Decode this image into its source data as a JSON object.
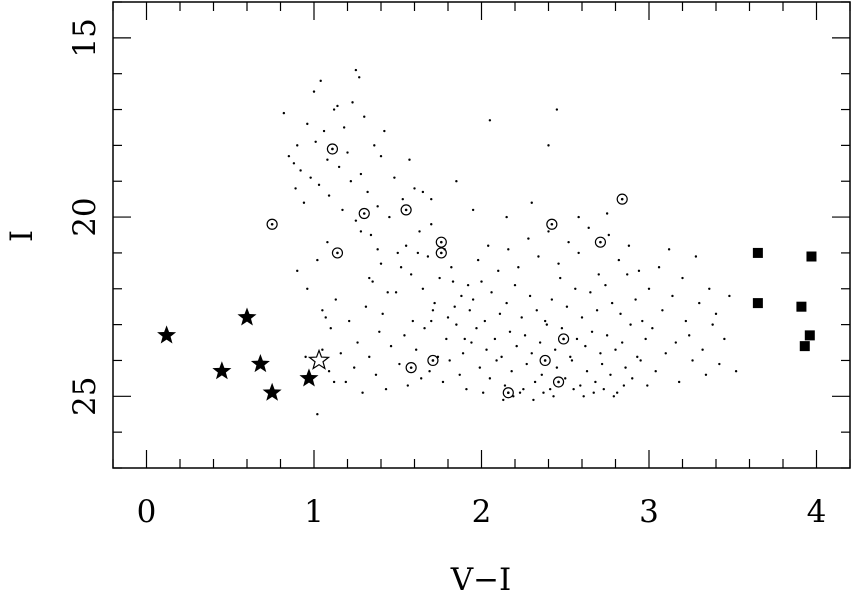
{
  "chart_data": {
    "type": "scatter",
    "title": "",
    "xlabel": "V−I",
    "ylabel": "I",
    "xlim": [
      -0.2,
      4.2
    ],
    "ylim": [
      27.0,
      14.0
    ],
    "y_inverted": true,
    "grid": false,
    "legend": "none",
    "x_ticks": [
      0,
      1,
      2,
      3,
      4
    ],
    "y_ticks": [
      15,
      20,
      25
    ],
    "colors": {
      "marker": "#000000",
      "background": "#ffffff"
    },
    "series": [
      {
        "marker": "filled-star",
        "points": [
          [
            0.12,
            23.3
          ],
          [
            0.45,
            24.3
          ],
          [
            0.6,
            22.8
          ],
          [
            0.68,
            24.1
          ],
          [
            0.75,
            24.9
          ],
          [
            0.97,
            24.5
          ]
        ]
      },
      {
        "marker": "open-star",
        "points": [
          [
            1.03,
            24.0
          ]
        ]
      },
      {
        "marker": "filled-square",
        "points": [
          [
            3.65,
            21.0
          ],
          [
            3.97,
            21.1
          ],
          [
            3.65,
            22.4
          ],
          [
            3.91,
            22.5
          ],
          [
            3.96,
            23.3
          ],
          [
            3.93,
            23.6
          ]
        ]
      },
      {
        "marker": "circled-dot",
        "points": [
          [
            0.75,
            20.2
          ],
          [
            1.11,
            18.1
          ],
          [
            1.3,
            19.9
          ],
          [
            1.14,
            21.0
          ],
          [
            1.55,
            19.8
          ],
          [
            1.76,
            20.7
          ],
          [
            1.76,
            21.0
          ],
          [
            1.58,
            24.2
          ],
          [
            1.71,
            24.0
          ],
          [
            2.16,
            24.9
          ],
          [
            2.42,
            20.2
          ],
          [
            2.38,
            24.0
          ],
          [
            2.46,
            24.6
          ],
          [
            2.49,
            23.4
          ],
          [
            2.71,
            20.7
          ],
          [
            2.84,
            19.5
          ]
        ]
      },
      {
        "marker": "dot",
        "points": [
          [
            0.82,
            17.1
          ],
          [
            0.85,
            18.3
          ],
          [
            0.88,
            18.5
          ],
          [
            0.89,
            19.2
          ],
          [
            0.9,
            18.0
          ],
          [
            0.92,
            18.7
          ],
          [
            0.94,
            19.6
          ],
          [
            0.96,
            17.4
          ],
          [
            0.98,
            18.9
          ],
          [
            1.0,
            16.5
          ],
          [
            1.01,
            17.9
          ],
          [
            1.03,
            19.1
          ],
          [
            1.04,
            16.2
          ],
          [
            1.06,
            17.6
          ],
          [
            1.08,
            18.4
          ],
          [
            1.09,
            19.4
          ],
          [
            1.12,
            17.0
          ],
          [
            1.14,
            16.9
          ],
          [
            1.15,
            18.6
          ],
          [
            1.17,
            19.8
          ],
          [
            1.18,
            17.5
          ],
          [
            1.2,
            18.2
          ],
          [
            1.22,
            19.0
          ],
          [
            1.23,
            16.8
          ],
          [
            1.25,
            20.1
          ],
          [
            1.27,
            16.1
          ],
          [
            1.28,
            18.8
          ],
          [
            1.3,
            17.2
          ],
          [
            1.32,
            19.3
          ],
          [
            1.34,
            20.5
          ],
          [
            1.36,
            18.0
          ],
          [
            1.38,
            19.7
          ],
          [
            1.4,
            21.3
          ],
          [
            1.42,
            17.6
          ],
          [
            1.45,
            20.0
          ],
          [
            1.48,
            18.9
          ],
          [
            1.5,
            21.0
          ],
          [
            1.53,
            19.5
          ],
          [
            1.55,
            20.8
          ],
          [
            1.58,
            21.6
          ],
          [
            1.6,
            19.2
          ],
          [
            1.63,
            20.4
          ],
          [
            1.65,
            22.0
          ],
          [
            1.68,
            21.1
          ],
          [
            1.7,
            20.2
          ],
          [
            1.72,
            22.4
          ],
          [
            1.75,
            21.7
          ],
          [
            1.78,
            20.9
          ],
          [
            1.8,
            22.8
          ],
          [
            1.82,
            21.4
          ],
          [
            1.85,
            23.0
          ],
          [
            1.88,
            22.2
          ],
          [
            1.9,
            23.4
          ],
          [
            1.92,
            21.9
          ],
          [
            0.9,
            21.5
          ],
          [
            0.96,
            22.0
          ],
          [
            1.02,
            21.2
          ],
          [
            1.05,
            22.6
          ],
          [
            1.08,
            20.7
          ],
          [
            1.1,
            23.1
          ],
          [
            1.13,
            22.3
          ],
          [
            1.16,
            23.8
          ],
          [
            1.19,
            24.6
          ],
          [
            1.21,
            22.9
          ],
          [
            1.24,
            24.2
          ],
          [
            1.26,
            23.5
          ],
          [
            1.29,
            24.9
          ],
          [
            1.31,
            22.5
          ],
          [
            1.33,
            23.9
          ],
          [
            1.35,
            21.8
          ],
          [
            1.37,
            24.4
          ],
          [
            1.39,
            23.2
          ],
          [
            1.41,
            22.7
          ],
          [
            1.43,
            24.8
          ],
          [
            1.46,
            23.6
          ],
          [
            1.49,
            22.1
          ],
          [
            1.51,
            24.1
          ],
          [
            1.54,
            23.3
          ],
          [
            1.56,
            24.7
          ],
          [
            1.59,
            22.9
          ],
          [
            1.61,
            23.7
          ],
          [
            1.64,
            24.5
          ],
          [
            1.66,
            23.1
          ],
          [
            1.69,
            24.3
          ],
          [
            1.71,
            22.6
          ],
          [
            1.74,
            23.9
          ],
          [
            1.77,
            24.6
          ],
          [
            1.79,
            23.4
          ],
          [
            1.81,
            24.0
          ],
          [
            1.84,
            22.5
          ],
          [
            1.87,
            24.4
          ],
          [
            1.89,
            23.8
          ],
          [
            1.91,
            24.8
          ],
          [
            1.94,
            23.5
          ],
          [
            1.95,
            22.3
          ],
          [
            1.97,
            23.1
          ],
          [
            1.99,
            24.2
          ],
          [
            2.0,
            21.8
          ],
          [
            2.02,
            22.9
          ],
          [
            2.03,
            23.7
          ],
          [
            2.05,
            24.5
          ],
          [
            2.06,
            22.1
          ],
          [
            2.08,
            23.4
          ],
          [
            2.09,
            24.0
          ],
          [
            2.11,
            22.7
          ],
          [
            2.12,
            23.9
          ],
          [
            2.14,
            24.7
          ],
          [
            2.15,
            22.4
          ],
          [
            2.17,
            23.2
          ],
          [
            2.18,
            24.3
          ],
          [
            2.2,
            21.9
          ],
          [
            2.21,
            23.6
          ],
          [
            2.23,
            24.9
          ],
          [
            2.24,
            22.8
          ],
          [
            2.26,
            23.3
          ],
          [
            2.27,
            24.1
          ],
          [
            2.29,
            22.2
          ],
          [
            2.3,
            23.8
          ],
          [
            2.32,
            24.6
          ],
          [
            2.33,
            22.6
          ],
          [
            2.35,
            23.5
          ],
          [
            2.36,
            24.4
          ],
          [
            2.38,
            22.9
          ],
          [
            2.39,
            23.0
          ],
          [
            2.41,
            24.8
          ],
          [
            2.42,
            22.3
          ],
          [
            2.44,
            23.7
          ],
          [
            2.45,
            24.2
          ],
          [
            2.47,
            21.7
          ],
          [
            2.48,
            23.1
          ],
          [
            2.5,
            24.5
          ],
          [
            2.51,
            22.5
          ],
          [
            2.53,
            23.9
          ],
          [
            2.54,
            24.0
          ],
          [
            2.56,
            22.0
          ],
          [
            2.57,
            23.4
          ],
          [
            2.59,
            24.7
          ],
          [
            2.6,
            22.8
          ],
          [
            2.62,
            23.6
          ],
          [
            2.63,
            24.3
          ],
          [
            2.65,
            22.1
          ],
          [
            2.66,
            23.2
          ],
          [
            2.68,
            24.6
          ],
          [
            2.69,
            22.6
          ],
          [
            2.71,
            23.8
          ],
          [
            2.72,
            24.1
          ],
          [
            2.74,
            21.9
          ],
          [
            2.75,
            23.3
          ],
          [
            2.77,
            24.4
          ],
          [
            2.78,
            22.4
          ],
          [
            2.8,
            23.7
          ],
          [
            2.81,
            24.9
          ],
          [
            2.83,
            22.7
          ],
          [
            2.84,
            23.5
          ],
          [
            2.86,
            24.2
          ],
          [
            2.87,
            21.6
          ],
          [
            2.89,
            23.0
          ],
          [
            2.9,
            24.5
          ],
          [
            2.92,
            22.3
          ],
          [
            2.93,
            23.9
          ],
          [
            2.95,
            24.0
          ],
          [
            2.96,
            22.9
          ],
          [
            2.98,
            23.4
          ],
          [
            2.99,
            24.7
          ],
          [
            1.98,
            21.2
          ],
          [
            2.04,
            20.8
          ],
          [
            2.1,
            21.5
          ],
          [
            2.16,
            20.9
          ],
          [
            2.22,
            21.4
          ],
          [
            2.28,
            20.6
          ],
          [
            2.34,
            21.1
          ],
          [
            2.4,
            20.4
          ],
          [
            2.46,
            21.3
          ],
          [
            2.52,
            20.7
          ],
          [
            2.58,
            21.0
          ],
          [
            2.64,
            20.3
          ],
          [
            2.7,
            21.6
          ],
          [
            2.76,
            20.5
          ],
          [
            2.82,
            21.2
          ],
          [
            2.88,
            20.8
          ],
          [
            2.94,
            21.5
          ],
          [
            3.0,
            22.0
          ],
          [
            3.02,
            23.1
          ],
          [
            3.04,
            24.3
          ],
          [
            3.06,
            21.4
          ],
          [
            3.08,
            22.6
          ],
          [
            3.1,
            23.8
          ],
          [
            3.12,
            20.9
          ],
          [
            3.14,
            22.2
          ],
          [
            3.16,
            23.5
          ],
          [
            3.18,
            24.6
          ],
          [
            3.2,
            21.7
          ],
          [
            3.22,
            22.9
          ],
          [
            3.24,
            23.3
          ],
          [
            3.26,
            24.0
          ],
          [
            3.28,
            21.1
          ],
          [
            3.3,
            22.4
          ],
          [
            3.32,
            23.7
          ],
          [
            3.34,
            24.4
          ],
          [
            3.36,
            22.0
          ],
          [
            3.38,
            23.0
          ],
          [
            3.4,
            22.7
          ],
          [
            3.42,
            24.1
          ],
          [
            3.45,
            23.4
          ],
          [
            3.48,
            22.2
          ],
          [
            3.52,
            24.3
          ],
          [
            1.28,
            20.4
          ],
          [
            1.33,
            21.7
          ],
          [
            1.38,
            20.9
          ],
          [
            1.44,
            22.1
          ],
          [
            1.52,
            21.4
          ],
          [
            1.62,
            21.0
          ],
          [
            1.7,
            22.9
          ],
          [
            1.83,
            21.8
          ],
          [
            1.93,
            22.6
          ],
          [
            2.01,
            24.9
          ],
          [
            2.13,
            25.1
          ],
          [
            2.19,
            25.0
          ],
          [
            2.25,
            24.8
          ],
          [
            2.31,
            25.1
          ],
          [
            2.37,
            24.9
          ],
          [
            2.43,
            25.0
          ],
          [
            2.55,
            24.8
          ],
          [
            2.61,
            25.0
          ],
          [
            2.67,
            24.9
          ],
          [
            2.73,
            24.8
          ],
          [
            2.79,
            25.0
          ],
          [
            2.85,
            24.7
          ],
          [
            1.05,
            23.7
          ],
          [
            1.02,
            25.5
          ],
          [
            1.12,
            24.6
          ],
          [
            1.07,
            22.8
          ],
          [
            0.95,
            23.9
          ],
          [
            1.09,
            24.3
          ],
          [
            2.05,
            17.3
          ],
          [
            2.45,
            17.0
          ],
          [
            2.4,
            18.0
          ],
          [
            1.25,
            15.9
          ],
          [
            1.4,
            18.3
          ],
          [
            1.57,
            18.4
          ],
          [
            1.65,
            19.3
          ],
          [
            1.7,
            19.5
          ],
          [
            1.85,
            19.0
          ],
          [
            1.95,
            19.8
          ],
          [
            2.15,
            20.0
          ],
          [
            2.3,
            19.6
          ],
          [
            2.58,
            20.0
          ],
          [
            2.75,
            19.9
          ]
        ]
      }
    ]
  }
}
